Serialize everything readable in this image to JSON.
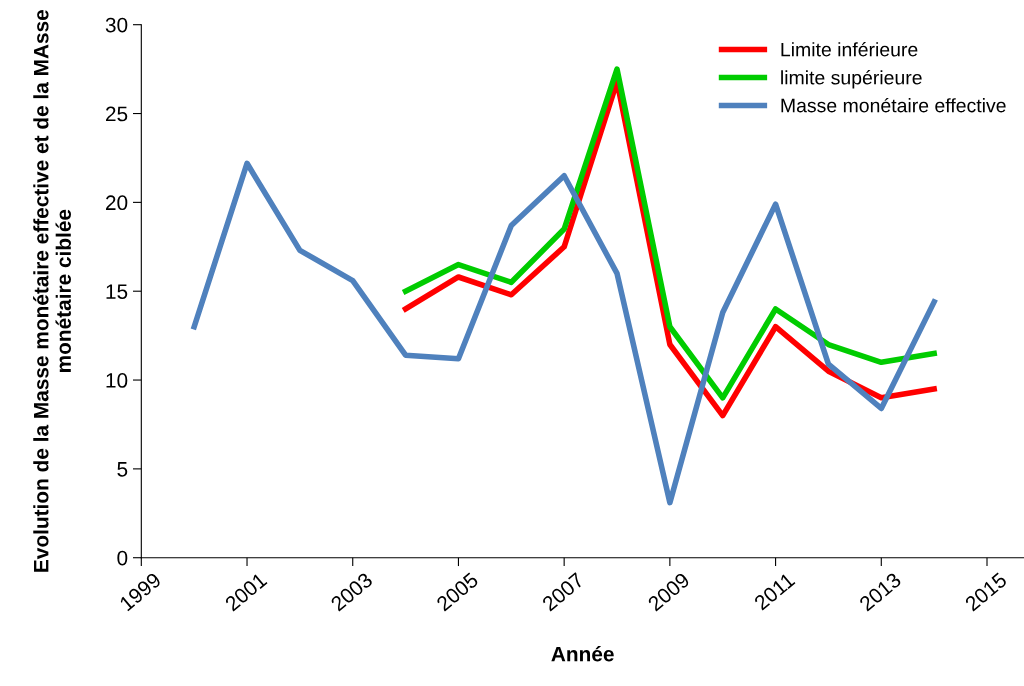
{
  "chart_data": {
    "type": "line",
    "xlabel": "Année",
    "ylabel": "Evolution de la Masse monétaire effective et de la MAsse monétaire ciblée",
    "xlim": [
      1999,
      2015.7
    ],
    "xticks": [
      1999,
      2001,
      2003,
      2005,
      2007,
      2009,
      2011,
      2013,
      2015
    ],
    "ylim": [
      0,
      30
    ],
    "yticks": [
      0,
      5,
      10,
      15,
      20,
      25,
      30
    ],
    "grid": false,
    "legend": "top right",
    "marker": "none",
    "line_style": "solid",
    "series": [
      {
        "name": "Limite inférieure",
        "color": "#ff0000",
        "x": [
          2004,
          2005,
          2006,
          2007,
          2008,
          2009,
          2010,
          2011,
          2012,
          2013,
          2014
        ],
        "values": [
          14,
          15.8,
          14.8,
          17.5,
          26.8,
          12,
          8,
          13,
          10.5,
          9,
          9.5
        ]
      },
      {
        "name": "limite supérieure",
        "color": "#00cc00",
        "x": [
          2004,
          2005,
          2006,
          2007,
          2008,
          2009,
          2010,
          2011,
          2012,
          2013,
          2014
        ],
        "values": [
          15,
          16.5,
          15.5,
          18.5,
          27.5,
          13,
          9,
          14,
          12,
          11,
          11.5
        ]
      },
      {
        "name": "Masse monétaire effective",
        "color": "#4f81bd",
        "x": [
          2000,
          2001,
          2002,
          2003,
          2004,
          2005,
          2006,
          2007,
          2008,
          2009,
          2010,
          2011,
          2012,
          2013,
          2014
        ],
        "values": [
          13,
          22.2,
          17.3,
          15.6,
          11.4,
          11.2,
          18.7,
          21.5,
          16,
          3.1,
          13.8,
          19.9,
          10.9,
          8.4,
          14.4
        ]
      }
    ]
  }
}
